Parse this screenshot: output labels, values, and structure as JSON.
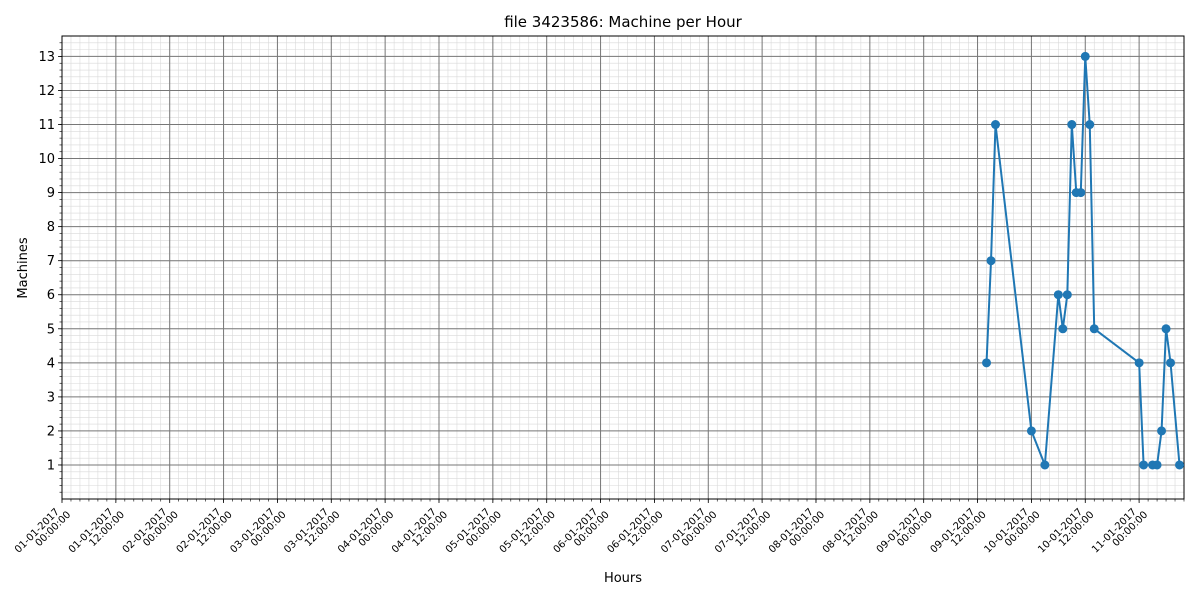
{
  "chart_data": {
    "type": "line",
    "title": "file 3423586: Machine per Hour",
    "xlabel": "Hours",
    "ylabel": "Machines",
    "x_start": "01-01-2017 00:00:00",
    "x_end": "11-01-2017 10:00:00",
    "ylim": [
      0,
      13.6
    ],
    "yticks": [
      "1",
      "2",
      "3",
      "4",
      "5",
      "6",
      "7",
      "8",
      "9",
      "10",
      "11",
      "12",
      "13"
    ],
    "xticks": [
      [
        "01-01-2017",
        "00:00:00"
      ],
      [
        "01-01-2017",
        "12:00:00"
      ],
      [
        "02-01-2017",
        "00:00:00"
      ],
      [
        "02-01-2017",
        "12:00:00"
      ],
      [
        "03-01-2017",
        "00:00:00"
      ],
      [
        "03-01-2017",
        "12:00:00"
      ],
      [
        "04-01-2017",
        "00:00:00"
      ],
      [
        "04-01-2017",
        "12:00:00"
      ],
      [
        "05-01-2017",
        "00:00:00"
      ],
      [
        "05-01-2017",
        "12:00:00"
      ],
      [
        "06-01-2017",
        "00:00:00"
      ],
      [
        "06-01-2017",
        "12:00:00"
      ],
      [
        "07-01-2017",
        "00:00:00"
      ],
      [
        "07-01-2017",
        "12:00:00"
      ],
      [
        "08-01-2017",
        "00:00:00"
      ],
      [
        "08-01-2017",
        "12:00:00"
      ],
      [
        "09-01-2017",
        "00:00:00"
      ],
      [
        "09-01-2017",
        "12:00:00"
      ],
      [
        "10-01-2017",
        "00:00:00"
      ],
      [
        "10-01-2017",
        "12:00:00"
      ],
      [
        "11-01-2017",
        "00:00:00"
      ]
    ],
    "grid": true,
    "series": [
      {
        "color": "#1f77b4",
        "points": [
          [
            "09-01-2017 14:00:00",
            4
          ],
          [
            "09-01-2017 15:00:00",
            7
          ],
          [
            "09-01-2017 16:00:00",
            11
          ],
          [
            "10-01-2017 00:00:00",
            2
          ],
          [
            "10-01-2017 03:00:00",
            1
          ],
          [
            "10-01-2017 06:00:00",
            6
          ],
          [
            "10-01-2017 07:00:00",
            5
          ],
          [
            "10-01-2017 08:00:00",
            6
          ],
          [
            "10-01-2017 09:00:00",
            11
          ],
          [
            "10-01-2017 10:00:00",
            9
          ],
          [
            "10-01-2017 11:00:00",
            9
          ],
          [
            "10-01-2017 12:00:00",
            13
          ],
          [
            "10-01-2017 13:00:00",
            11
          ],
          [
            "10-01-2017 14:00:00",
            5
          ],
          [
            "11-01-2017 00:00:00",
            4
          ],
          [
            "11-01-2017 01:00:00",
            1
          ],
          [
            "11-01-2017 03:00:00",
            1
          ],
          [
            "11-01-2017 04:00:00",
            1
          ],
          [
            "11-01-2017 05:00:00",
            2
          ],
          [
            "11-01-2017 06:00:00",
            5
          ],
          [
            "11-01-2017 07:00:00",
            4
          ],
          [
            "11-01-2017 09:00:00",
            1
          ]
        ]
      }
    ]
  }
}
